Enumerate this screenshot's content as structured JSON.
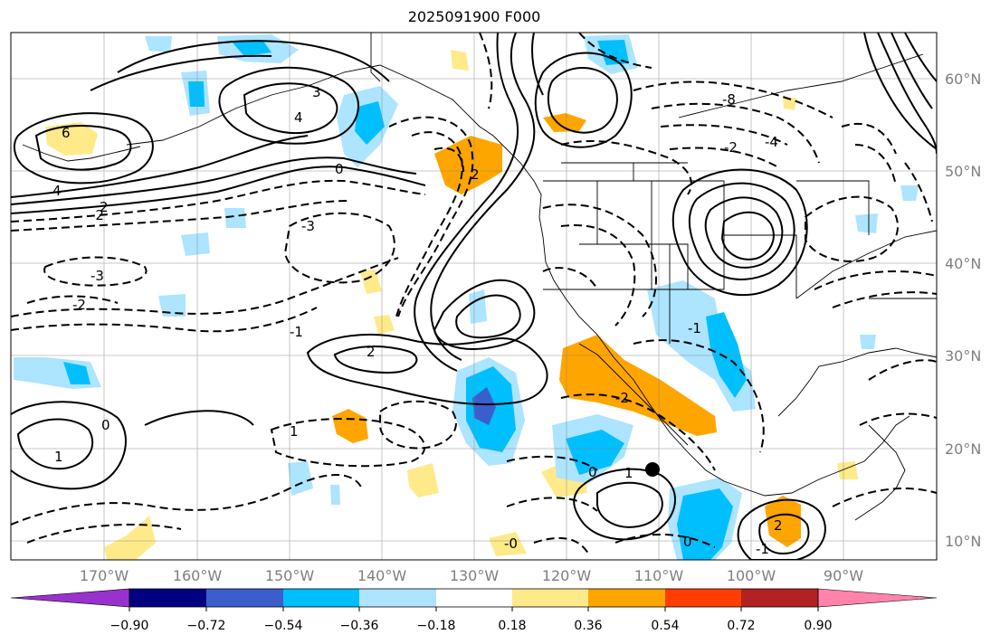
{
  "title": "2025091900 F000",
  "map": {
    "lon_labels": [
      "170°W",
      "160°W",
      "150°W",
      "140°W",
      "130°W",
      "120°W",
      "110°W",
      "100°W",
      "90°W"
    ],
    "lat_labels": [
      "60°N",
      "50°N",
      "40°N",
      "30°N",
      "20°N",
      "10°N"
    ],
    "contour_labels": [
      "6",
      "4",
      "-2",
      "-3",
      "-2",
      "-1",
      "0",
      "1",
      "2",
      "3",
      "4",
      "-8",
      "-4",
      "-2",
      "0",
      "2",
      "2",
      "-3",
      "-2",
      "-1",
      "1",
      "0",
      "-0",
      "0",
      "-1",
      "1",
      "2"
    ],
    "marker": "storm-center"
  },
  "colorbar": {
    "colors": [
      "#9932cc",
      "#000080",
      "#3a5fcd",
      "#00bfff",
      "#ade4ff",
      "#ffffff",
      "#ffea8a",
      "#ffa500",
      "#ff3e00",
      "#b22222",
      "#ff83ab"
    ],
    "ticks": [
      "−0.90",
      "−0.72",
      "−0.54",
      "−0.36",
      "−0.18",
      "0.18",
      "0.36",
      "0.54",
      "0.72",
      "0.90"
    ]
  }
}
